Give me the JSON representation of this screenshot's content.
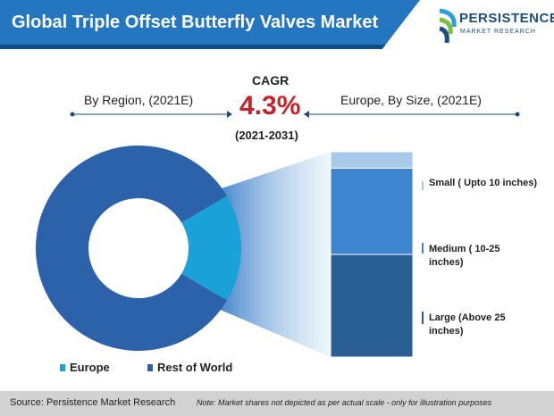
{
  "title": "Global Triple Offset Butterfly Valves Market",
  "logo": {
    "brand": "PERSISTENCE",
    "sub": "MARKET RESEARCH"
  },
  "left_header": "By Region, (2021E)",
  "right_header": "Europe, By Size, (2021E)",
  "cagr": {
    "label": "CAGR",
    "value": "4.3%",
    "period": "(2021-2031)"
  },
  "colors": {
    "title_bar": "#2476c0",
    "europe": "#1aa1d8",
    "rest_of_world": "#2b62a9",
    "small": "#a9c9e8",
    "medium": "#3d86cf",
    "large": "#2a5f93",
    "cagr": "#c3242b"
  },
  "chart_data": [
    {
      "type": "pie",
      "style": "donut",
      "categories": [
        "Europe",
        "Rest of World"
      ],
      "values": [
        17,
        83
      ],
      "colors": [
        "#1aa1d8",
        "#2b62a9"
      ]
    },
    {
      "type": "bar",
      "style": "100% stacked",
      "categories": [
        "Small ( Upto 10 inches)",
        "Medium ( 10-25 inches)",
        "Large (Above 25 inches)"
      ],
      "values": [
        8,
        42,
        50
      ],
      "colors": [
        "#a9c9e8",
        "#3d86cf",
        "#2a5f93"
      ]
    }
  ],
  "legend": {
    "europe": "Europe",
    "rest_of_world": "Rest of World"
  },
  "footer": {
    "source": "Source: Persistence Market Research",
    "note": "Note: Market shares not depicted as per actual scale - only for illustration purposes"
  }
}
